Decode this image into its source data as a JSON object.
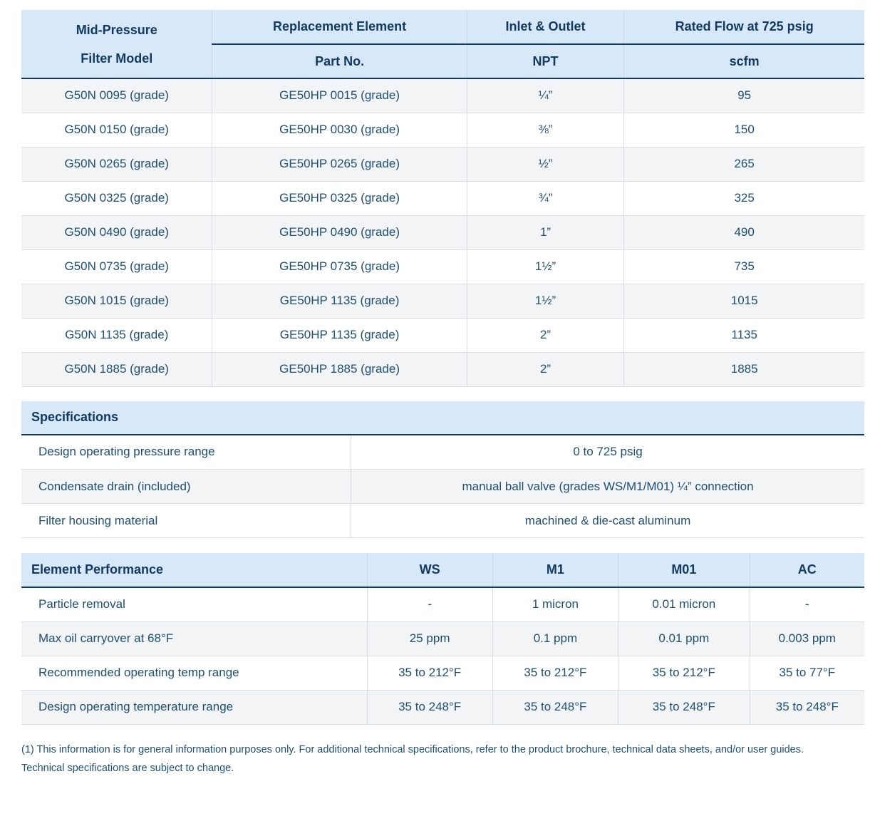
{
  "colors": {
    "header_bg": "#d7e8f9",
    "header_text": "#123a63",
    "body_text": "#1d4f73",
    "dark_border": "#133a60",
    "light_border": "#d9dee3",
    "row_alt_bg": "#f2f4f6"
  },
  "main_table": {
    "col1_header_line1": "Mid-Pressure",
    "col1_header_line2": "Filter Model",
    "group_headers": {
      "replacement_element": "Replacement Element",
      "inlet_outlet": "Inlet & Outlet",
      "rated_flow": "Rated Flow at 725 psig"
    },
    "sub_headers": {
      "part_no": "Part No.",
      "npt": "NPT",
      "scfm": "scfm"
    },
    "rows": [
      [
        "G50N 0095 (grade)",
        "GE50HP 0015 (grade)",
        "¼”",
        "95"
      ],
      [
        "G50N 0150 (grade)",
        "GE50HP 0030 (grade)",
        "⅜”",
        "150"
      ],
      [
        "G50N 0265 (grade)",
        "GE50HP 0265 (grade)",
        "½”",
        "265"
      ],
      [
        "G50N 0325 (grade)",
        "GE50HP 0325 (grade)",
        "¾”",
        "325"
      ],
      [
        "G50N 0490 (grade)",
        "GE50HP 0490 (grade)",
        "1”",
        "490"
      ],
      [
        "G50N 0735 (grade)",
        "GE50HP 0735 (grade)",
        "1½”",
        "735"
      ],
      [
        "G50N 1015 (grade)",
        "GE50HP 1135 (grade)",
        "1½”",
        "1015"
      ],
      [
        "G50N 1135 (grade)",
        "GE50HP 1135 (grade)",
        "2”",
        "1135"
      ],
      [
        "G50N 1885 (grade)",
        "GE50HP 1885 (grade)",
        "2”",
        "1885"
      ]
    ]
  },
  "specifications": {
    "title": "Specifications",
    "rows": [
      [
        "Design operating pressure range",
        "0 to 725 psig"
      ],
      [
        "Condensate drain (included)",
        "manual ball valve (grades WS/M1/M01) ¼” connection"
      ],
      [
        "Filter housing material",
        "machined & die-cast aluminum"
      ]
    ]
  },
  "element_performance": {
    "title": "Element Performance",
    "columns": [
      "WS",
      "M1",
      "M01",
      "AC"
    ],
    "rows": [
      [
        "Particle removal",
        "-",
        "1 micron",
        "0.01 micron",
        "-"
      ],
      [
        "Max oil carryover at 68°F",
        "25 ppm",
        "0.1 ppm",
        "0.01 ppm",
        "0.003 ppm"
      ],
      [
        "Recommended operating temp range",
        "35 to 212°F",
        "35 to 212°F",
        "35 to 212°F",
        "35 to 77°F"
      ],
      [
        "Design operating temperature range",
        "35 to 248°F",
        "35 to 248°F",
        "35 to 248°F",
        "35 to 248°F"
      ]
    ]
  },
  "footnote": {
    "line1": "(1) This information is for general information purposes only. For additional technical specifications, refer to the product brochure, technical data sheets, and/or user guides.",
    "line2": "Technical specifications are subject to change."
  }
}
